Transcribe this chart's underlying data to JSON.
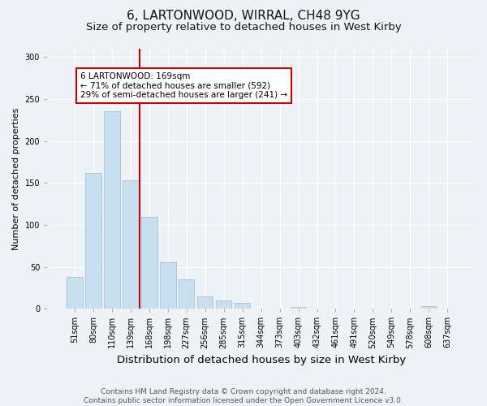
{
  "title1": "6, LARTONWOOD, WIRRAL, CH48 9YG",
  "title2": "Size of property relative to detached houses in West Kirby",
  "xlabel": "Distribution of detached houses by size in West Kirby",
  "ylabel": "Number of detached properties",
  "categories": [
    "51sqm",
    "80sqm",
    "110sqm",
    "139sqm",
    "168sqm",
    "198sqm",
    "227sqm",
    "256sqm",
    "285sqm",
    "315sqm",
    "344sqm",
    "373sqm",
    "403sqm",
    "432sqm",
    "461sqm",
    "491sqm",
    "520sqm",
    "549sqm",
    "578sqm",
    "608sqm",
    "637sqm"
  ],
  "values": [
    38,
    162,
    235,
    153,
    110,
    55,
    35,
    15,
    10,
    7,
    0,
    0,
    2,
    0,
    0,
    0,
    0,
    0,
    0,
    3,
    0
  ],
  "bar_color": "#c8dff0",
  "bar_edge_color": "#a0c4e0",
  "vline_color": "#cc0000",
  "vline_x_index": 3.5,
  "annotation_text": "6 LARTONWOOD: 169sqm\n← 71% of detached houses are smaller (592)\n29% of semi-detached houses are larger (241) →",
  "annotation_box_color": "#ffffff",
  "annotation_box_edge": "#cc0000",
  "footnote": "Contains HM Land Registry data © Crown copyright and database right 2024.\nContains public sector information licensed under the Open Government Licence v3.0.",
  "bg_color": "#eef2f7",
  "plot_bg_color": "#eef2f7",
  "ylim": [
    0,
    310
  ],
  "yticks": [
    0,
    50,
    100,
    150,
    200,
    250,
    300
  ],
  "title1_fontsize": 11,
  "title2_fontsize": 9.5,
  "xlabel_fontsize": 9.5,
  "ylabel_fontsize": 8,
  "tick_fontsize": 7,
  "footnote_fontsize": 6.5,
  "annotation_fontsize": 7.5
}
